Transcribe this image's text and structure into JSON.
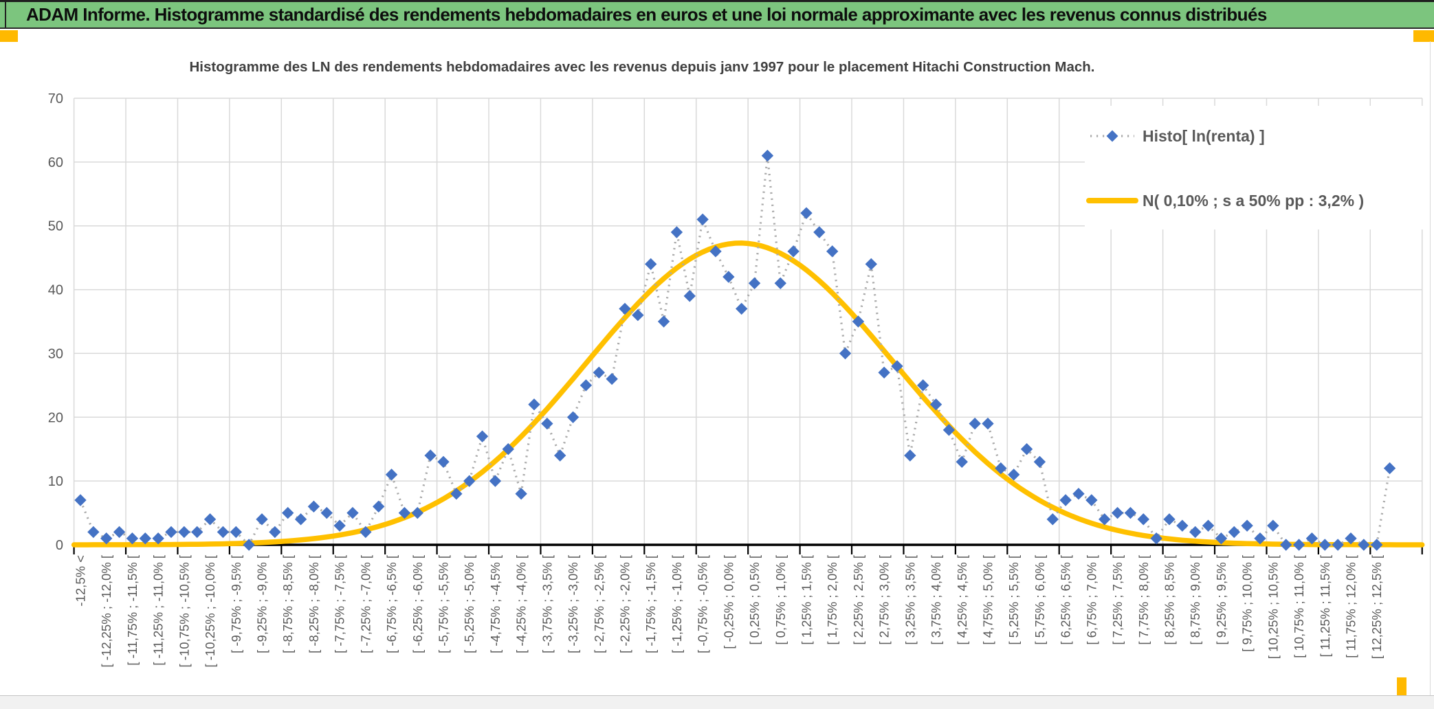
{
  "window": {
    "title": "ADAM Informe. Histogramme standardisé des rendements hebdomadaires en euros et une loi normale approximante avec les revenus connus distribués"
  },
  "colors": {
    "header_bg": "#7cc57e",
    "accent_orange": "#ffb900",
    "histogram_marker_blue": "#4472C4",
    "histogram_line_gray": "#ABABAB",
    "normal_curve_yellow": "#FFC000",
    "axis_text_gray": "#595959",
    "title_text_gray": "#404040"
  },
  "chart_data": {
    "type": "line",
    "title": "Histogramme des LN des rendements hebdomadaires avec les revenus depuis janv 1997 pour le placement Hitachi Construction Mach.",
    "ylim": [
      0,
      70
    ],
    "y_ticks": [
      "0",
      "10",
      "20",
      "30",
      "40",
      "50",
      "60",
      "70"
    ],
    "grid": true,
    "legend_position": "right-top",
    "total_categories": 102,
    "label_interval_categories": 2,
    "x_labels_shown": [
      "-12,5% <",
      "[ -12,25% ; -12,0% [",
      "[ -11,75% ; -11,5% [",
      "[ -11,25% ; -11,0% [",
      "[ -10,75% ; -10,5% [",
      "[ -10,25% ; -10,0% [",
      "[ -9,75% ; -9,5% [",
      "[ -9,25% ; -9,0% [",
      "[ -8,75% ; -8,5% [",
      "[ -8,25% ; -8,0% [",
      "[ -7,75% ; -7,5% [",
      "[ -7,25% ; -7,0% [",
      "[ -6,75% ; -6,5% [",
      "[ -6,25% ; -6,0% [",
      "[ -5,75% ; -5,5% [",
      "[ -5,25% ; -5,0% [",
      "[ -4,75% ; -4,5% [",
      "[ -4,25% ; -4,0% [",
      "[ -3,75% ; -3,5% [",
      "[ -3,25% ; -3,0% [",
      "[ -2,75% ; -2,5% [",
      "[ -2,25% ; -2,0% [",
      "[ -1,75% ; -1,5% [",
      "[ -1,25% ; -1,0% [",
      "[ -0,75% ; -0,5% [",
      "[ -0,25% ; 0,0% [",
      "[ 0,25% ; 0,5% [",
      "[ 0,75% ; 1,0% [",
      "[ 1,25% ; 1,5% [",
      "[ 1,75% ; 2,0% [",
      "[ 2,25% ; 2,5% [",
      "[ 2,75% ; 3,0% [",
      "[ 3,25% ; 3,5% [",
      "[ 3,75% ; 4,0% [",
      "[ 4,25% ; 4,5% [",
      "[ 4,75% ; 5,0% [",
      "[ 5,25% ; 5,5% [",
      "[ 5,75% ; 6,0% [",
      "[ 6,25% ; 6,5% [",
      "[ 6,75% ; 7,0% [",
      "[ 7,25% ; 7,5% [",
      "[ 7,75% ; 8,0% [",
      "[ 8,25% ; 8,5% [",
      "[ 8,75% ; 9,0% [",
      "[ 9,25% ; 9,5% [",
      "[ 9,75% ; 10,0% [",
      "[ 10,25% ; 10,5% [",
      "[ 10,75% ; 11,0% [",
      "[ 11,25% ; 11,5% [",
      "[ 11,75% ; 12,0% [",
      "[ 12,25% ; 12,5% ["
    ],
    "series": [
      {
        "name": "Histo[ ln(renta) ]",
        "type": "scatter-line",
        "marker": "diamond",
        "marker_color": "#4472C4",
        "line_style": "dotted",
        "line_color": "#ABABAB",
        "values": [
          7,
          2,
          1,
          2,
          1,
          1,
          1,
          2,
          2,
          2,
          4,
          2,
          2,
          0,
          4,
          2,
          5,
          4,
          6,
          5,
          3,
          5,
          2,
          6,
          11,
          5,
          5,
          14,
          13,
          8,
          10,
          17,
          10,
          15,
          8,
          22,
          19,
          14,
          20,
          25,
          27,
          26,
          37,
          36,
          44,
          35,
          49,
          39,
          51,
          46,
          42,
          37,
          41,
          61,
          41,
          46,
          52,
          49,
          46,
          30,
          35,
          44,
          27,
          28,
          14,
          25,
          22,
          18,
          13,
          19,
          19,
          12,
          11,
          15,
          13,
          4,
          7,
          8,
          7,
          4,
          5,
          5,
          4,
          1,
          4,
          3,
          2,
          3,
          1,
          2,
          3,
          1,
          3,
          0,
          0,
          1,
          0,
          0,
          1,
          0,
          0,
          12
        ]
      },
      {
        "name": "N( 0,10% ; s a 50% pp : 3,2% )",
        "type": "gaussian-curve",
        "color": "#FFC000",
        "peak": 47.3,
        "mean_percent": 0.1,
        "sd_percent_visual": 2.95
      }
    ]
  }
}
